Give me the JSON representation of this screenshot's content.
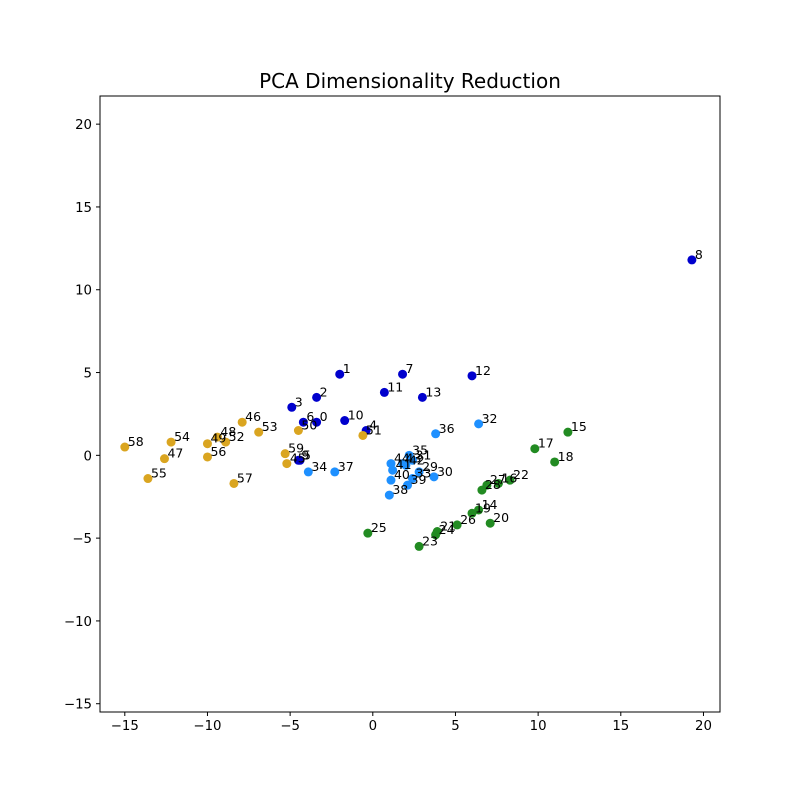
{
  "chart_data": {
    "type": "scatter",
    "title": "PCA Dimensionality Reduction",
    "xlabel": "",
    "ylabel": "",
    "xlim": [
      -16.5,
      21
    ],
    "ylim": [
      -15.5,
      21.7
    ],
    "xticks": [
      -15,
      -10,
      -5,
      0,
      5,
      10,
      15,
      20
    ],
    "yticks": [
      -15,
      -10,
      -5,
      0,
      5,
      10,
      15,
      20
    ],
    "tick_labels_x": [
      "−15",
      "−10",
      "−5",
      "0",
      "5",
      "10",
      "15",
      "20"
    ],
    "tick_labels_y": [
      "−15",
      "−10",
      "−5",
      "0",
      "5",
      "10",
      "15",
      "20"
    ],
    "grid": false,
    "legend": "none",
    "colors": {
      "group_1": "#0000cd",
      "group_2": "#228b22",
      "group_3": "#1e90ff",
      "group_4": "#daa520"
    },
    "series": [
      {
        "color": "#0000cd",
        "points": [
          {
            "label": "0",
            "x": -3.4,
            "y": 2.0
          },
          {
            "label": "1",
            "x": -2.0,
            "y": 4.9
          },
          {
            "label": "2",
            "x": -3.4,
            "y": 3.5
          },
          {
            "label": "3",
            "x": -4.9,
            "y": 2.9
          },
          {
            "label": "4",
            "x": -0.4,
            "y": 1.5
          },
          {
            "label": "5",
            "x": -4.4,
            "y": -0.3
          },
          {
            "label": "6",
            "x": -4.2,
            "y": 2.0
          },
          {
            "label": "7",
            "x": 1.8,
            "y": 4.9
          },
          {
            "label": "8",
            "x": 19.3,
            "y": 11.8
          },
          {
            "label": "9",
            "x": -4.5,
            "y": -0.3
          },
          {
            "label": "10",
            "x": -1.7,
            "y": 2.1
          },
          {
            "label": "11",
            "x": 0.7,
            "y": 3.8
          },
          {
            "label": "12",
            "x": 6.0,
            "y": 4.8
          },
          {
            "label": "13",
            "x": 3.0,
            "y": 3.5
          }
        ]
      },
      {
        "color": "#228b22",
        "points": [
          {
            "label": "14",
            "x": 6.4,
            "y": -3.3
          },
          {
            "label": "15",
            "x": 11.8,
            "y": 1.4
          },
          {
            "label": "16",
            "x": 7.6,
            "y": -1.7
          },
          {
            "label": "17",
            "x": 9.8,
            "y": 0.4
          },
          {
            "label": "18",
            "x": 11.0,
            "y": -0.4
          },
          {
            "label": "19",
            "x": 6.0,
            "y": -3.5
          },
          {
            "label": "20",
            "x": 7.1,
            "y": -4.1
          },
          {
            "label": "21",
            "x": 3.9,
            "y": -4.6
          },
          {
            "label": "22",
            "x": 8.3,
            "y": -1.5
          },
          {
            "label": "23",
            "x": 2.8,
            "y": -5.5
          },
          {
            "label": "24",
            "x": 3.8,
            "y": -4.8
          },
          {
            "label": "25",
            "x": -0.3,
            "y": -4.7
          },
          {
            "label": "26",
            "x": 5.1,
            "y": -4.2
          },
          {
            "label": "27",
            "x": 6.9,
            "y": -1.8
          },
          {
            "label": "28",
            "x": 6.6,
            "y": -2.1
          }
        ]
      },
      {
        "color": "#1e90ff",
        "points": [
          {
            "label": "29",
            "x": 2.8,
            "y": -1.0
          },
          {
            "label": "30",
            "x": 3.7,
            "y": -1.3
          },
          {
            "label": "31",
            "x": 2.4,
            "y": -0.3
          },
          {
            "label": "32",
            "x": 6.4,
            "y": 1.9
          },
          {
            "label": "33",
            "x": 2.4,
            "y": -1.4
          },
          {
            "label": "34",
            "x": -3.9,
            "y": -1.0
          },
          {
            "label": "35",
            "x": 2.2,
            "y": 0.0
          },
          {
            "label": "36",
            "x": 3.8,
            "y": 1.3
          },
          {
            "label": "37",
            "x": -2.3,
            "y": -1.0
          },
          {
            "label": "38",
            "x": 1.0,
            "y": -2.4
          },
          {
            "label": "39",
            "x": 2.1,
            "y": -1.8
          },
          {
            "label": "40",
            "x": 1.1,
            "y": -1.5
          },
          {
            "label": "41",
            "x": 1.2,
            "y": -0.9
          },
          {
            "label": "42",
            "x": 2.0,
            "y": -0.6
          },
          {
            "label": "43",
            "x": 1.8,
            "y": -0.5
          },
          {
            "label": "44",
            "x": 1.1,
            "y": -0.5
          }
        ]
      },
      {
        "color": "#daa520",
        "points": [
          {
            "label": "45",
            "x": -5.2,
            "y": -0.5
          },
          {
            "label": "46",
            "x": -7.9,
            "y": 2.0
          },
          {
            "label": "47",
            "x": -12.6,
            "y": -0.2
          },
          {
            "label": "48",
            "x": -9.4,
            "y": 1.1
          },
          {
            "label": "49",
            "x": -10.0,
            "y": 0.7
          },
          {
            "label": "50",
            "x": -4.5,
            "y": 1.5
          },
          {
            "label": "51",
            "x": -0.6,
            "y": 1.2
          },
          {
            "label": "52",
            "x": -8.9,
            "y": 0.8
          },
          {
            "label": "53",
            "x": -6.9,
            "y": 1.4
          },
          {
            "label": "54",
            "x": -12.2,
            "y": 0.8
          },
          {
            "label": "55",
            "x": -13.6,
            "y": -1.4
          },
          {
            "label": "56",
            "x": -10.0,
            "y": -0.1
          },
          {
            "label": "57",
            "x": -8.4,
            "y": -1.7
          },
          {
            "label": "58",
            "x": -15.0,
            "y": 0.5
          },
          {
            "label": "59",
            "x": -5.3,
            "y": 0.1
          }
        ]
      }
    ]
  }
}
